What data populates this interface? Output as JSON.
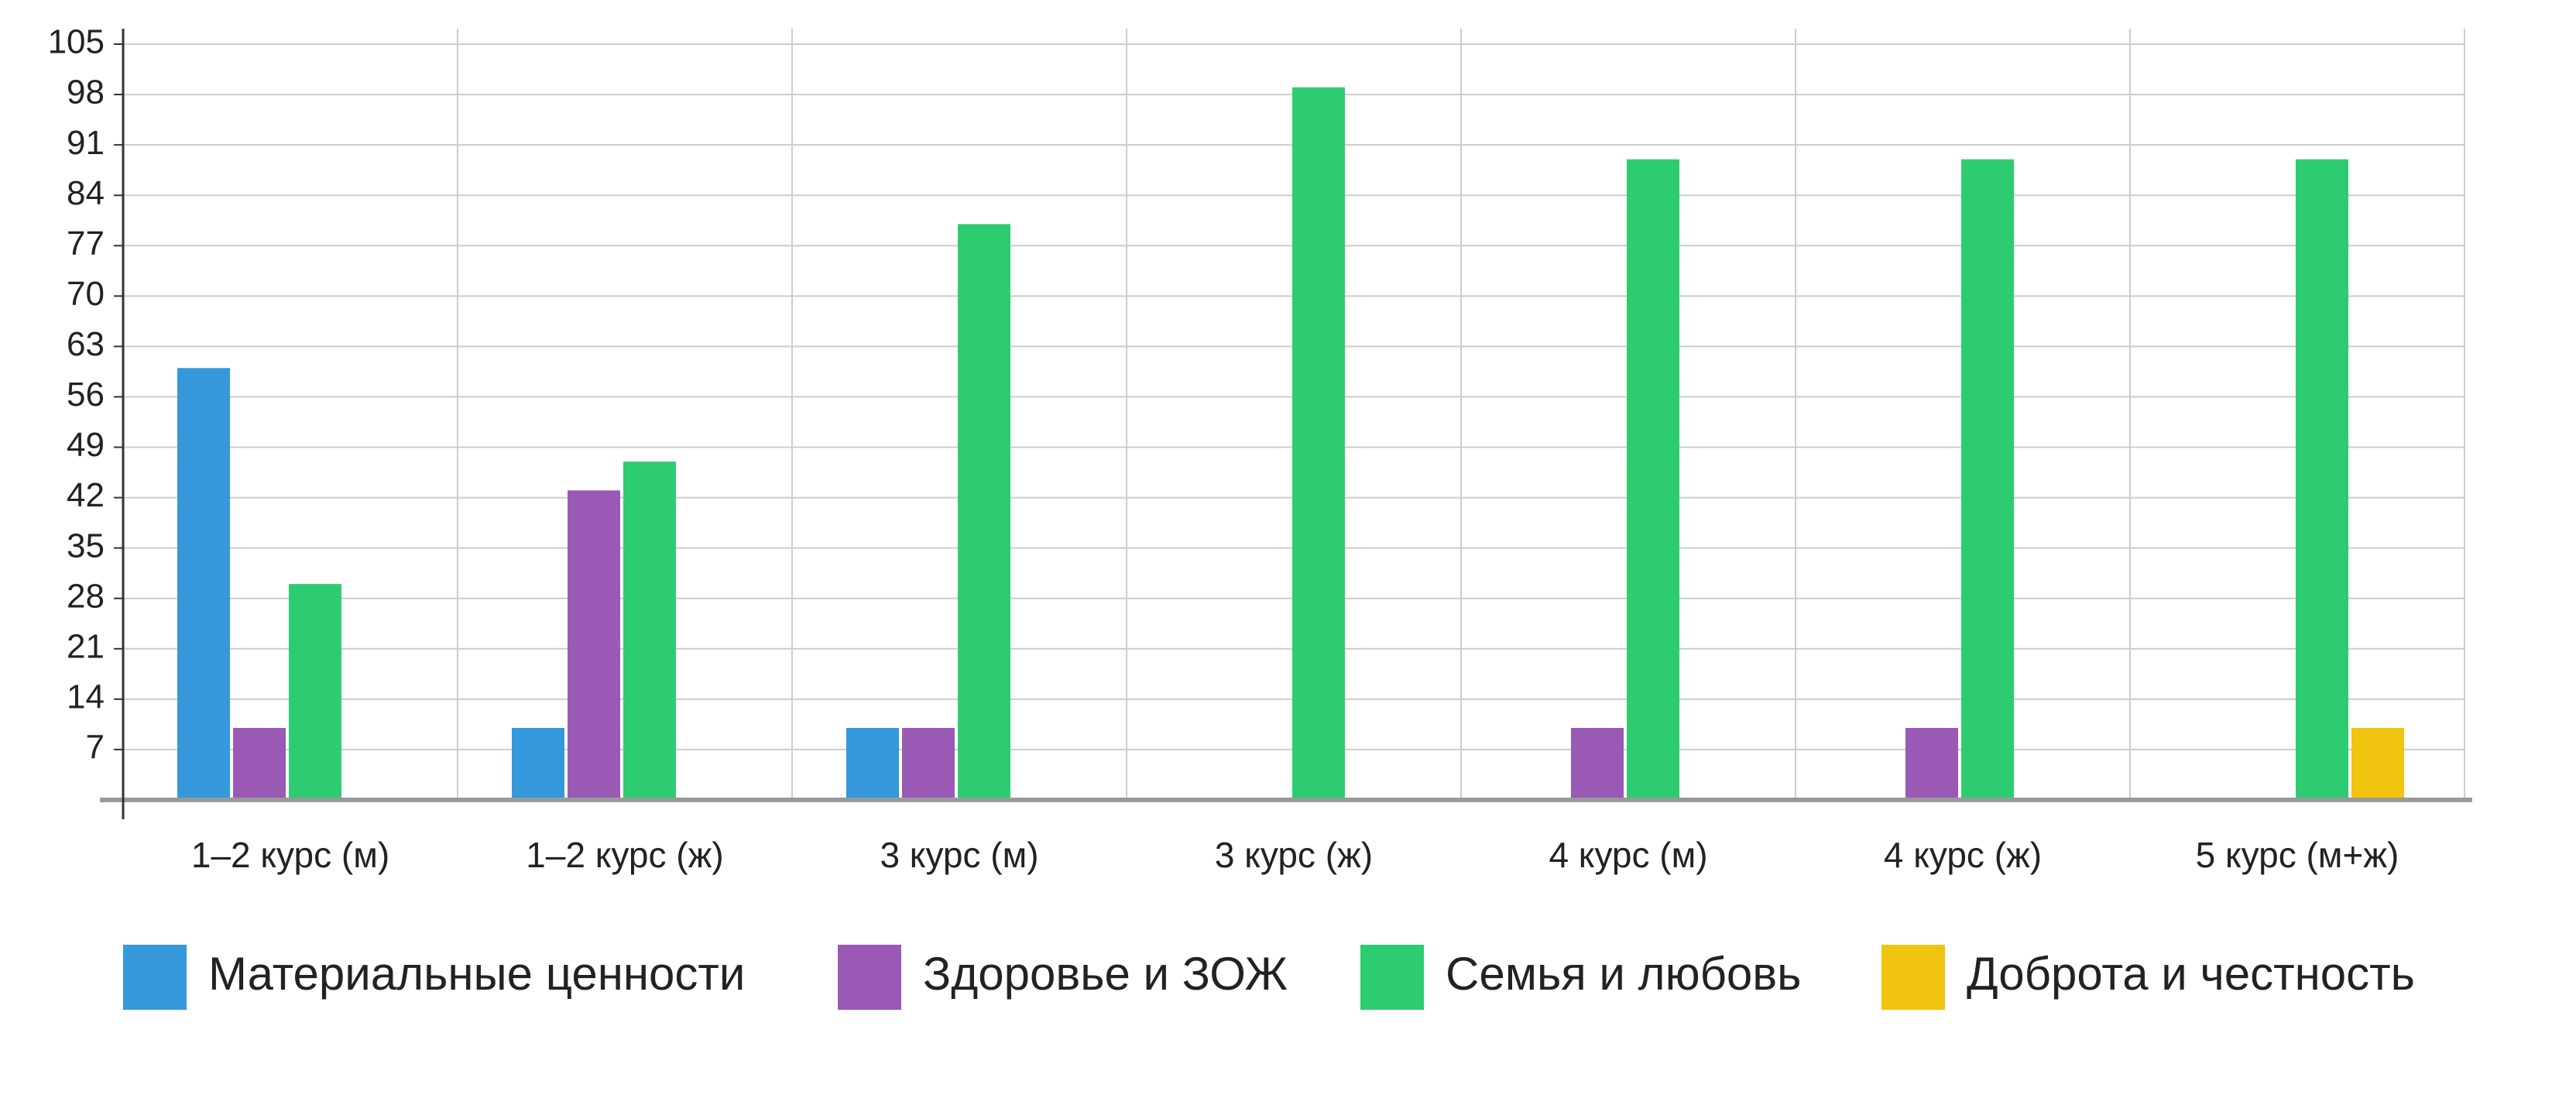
{
  "chart_data": {
    "type": "bar",
    "categories": [
      "1–2 курс (м)",
      "1–2 курс (ж)",
      "3 курс (м)",
      "3 курс (ж)",
      "4 курс (м)",
      "4 курс (ж)",
      "5 курс (м+ж)"
    ],
    "series": [
      {
        "name": "Материальные ценности",
        "color": "#3498db",
        "values": [
          60,
          10,
          10,
          0,
          0,
          0,
          0
        ]
      },
      {
        "name": "Здоровье и ЗОЖ",
        "color": "#9b59b6",
        "values": [
          10,
          43,
          10,
          0,
          10,
          10,
          0
        ]
      },
      {
        "name": "Семья и любовь",
        "color": "#2ecc71",
        "values": [
          30,
          47,
          80,
          99,
          89,
          89,
          89
        ]
      },
      {
        "name": "Доброта и честность",
        "color": "#f1c40f",
        "values": [
          0,
          0,
          0,
          0,
          0,
          0,
          10
        ]
      }
    ],
    "ylim": [
      0,
      105
    ],
    "yticks": [
      7,
      14,
      21,
      28,
      35,
      42,
      49,
      56,
      63,
      70,
      77,
      84,
      91,
      98,
      105
    ],
    "grid": true,
    "legend": "bottom"
  }
}
